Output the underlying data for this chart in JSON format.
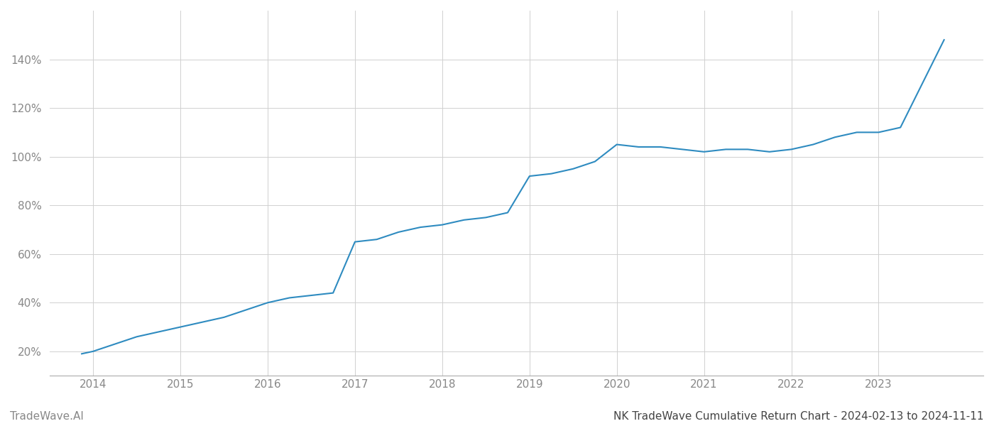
{
  "title": "NK TradeWave Cumulative Return Chart - 2024-02-13 to 2024-11-11",
  "watermark": "TradeWave.AI",
  "line_color": "#2e8bc0",
  "background_color": "#ffffff",
  "grid_color": "#d0d0d0",
  "x_years": [
    2014,
    2015,
    2016,
    2017,
    2018,
    2019,
    2020,
    2021,
    2022,
    2023
  ],
  "x_data": [
    2013.87,
    2014.0,
    2014.25,
    2014.5,
    2014.75,
    2015.0,
    2015.25,
    2015.5,
    2015.75,
    2016.0,
    2016.25,
    2016.5,
    2016.75,
    2017.0,
    2017.25,
    2017.5,
    2017.75,
    2018.0,
    2018.25,
    2018.5,
    2018.75,
    2019.0,
    2019.25,
    2019.5,
    2019.75,
    2020.0,
    2020.25,
    2020.5,
    2020.75,
    2021.0,
    2021.25,
    2021.5,
    2021.75,
    2022.0,
    2022.25,
    2022.5,
    2022.75,
    2023.0,
    2023.25,
    2023.5,
    2023.75
  ],
  "y_data": [
    19,
    20,
    23,
    26,
    28,
    30,
    32,
    34,
    37,
    40,
    42,
    43,
    44,
    65,
    66,
    69,
    71,
    72,
    74,
    75,
    77,
    92,
    93,
    95,
    98,
    105,
    104,
    104,
    103,
    102,
    103,
    103,
    102,
    103,
    105,
    108,
    110,
    110,
    112,
    130,
    148
  ],
  "ylim": [
    10,
    160
  ],
  "yticks": [
    20,
    40,
    60,
    80,
    100,
    120,
    140
  ],
  "xlim": [
    2013.5,
    2024.2
  ],
  "line_width": 1.5,
  "title_fontsize": 11,
  "watermark_fontsize": 11,
  "tick_fontsize": 11,
  "tick_color": "#888888",
  "title_color": "#444444",
  "spine_color": "#aaaaaa"
}
